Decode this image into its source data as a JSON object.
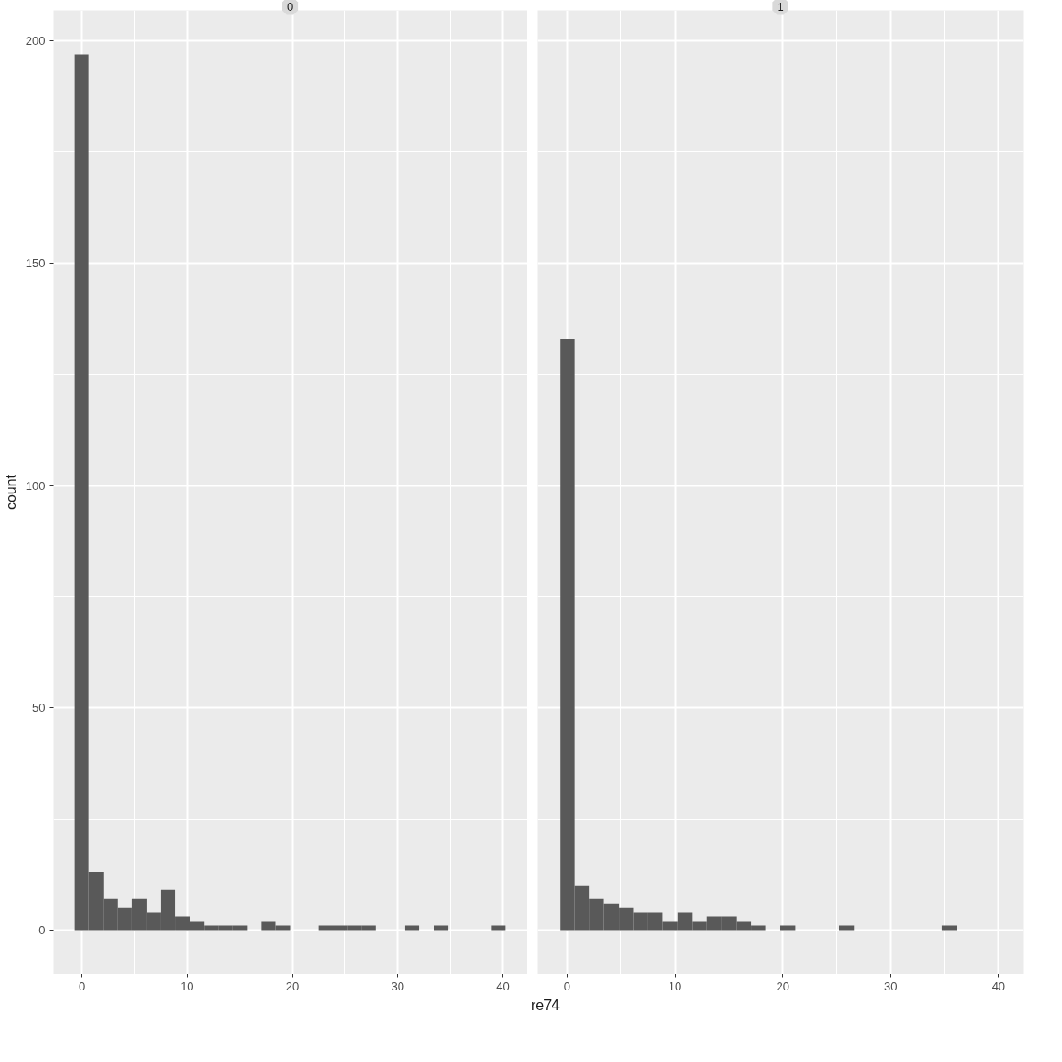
{
  "chart_data": [
    {
      "type": "histogram",
      "title": "0",
      "xlabel": "re74",
      "ylabel": "count",
      "color": "#595959",
      "bins": [
        -0.68,
        0.68,
        2.05,
        3.41,
        4.78,
        6.14,
        7.5,
        8.87,
        10.23,
        11.6,
        12.96,
        14.32,
        15.69,
        17.05,
        18.42,
        19.78,
        21.14,
        22.51,
        23.87,
        25.24,
        26.6,
        27.96,
        29.33,
        30.69,
        32.06,
        33.42,
        34.78,
        36.15,
        37.51,
        38.88,
        40.24
      ],
      "values": [
        197,
        13,
        7,
        5,
        7,
        4,
        9,
        3,
        2,
        1,
        1,
        1,
        0,
        2,
        1,
        0,
        0,
        1,
        1,
        1,
        1,
        0,
        0,
        1,
        0,
        1,
        0,
        0,
        0,
        1
      ],
      "xlim": [
        -2.73,
        42.29
      ],
      "ylim": [
        -9.85,
        206.85
      ],
      "xticks": [
        0,
        10,
        20,
        30,
        40
      ],
      "yticks": [
        0,
        50,
        100,
        150,
        200
      ],
      "grid": true
    },
    {
      "type": "histogram",
      "title": "1",
      "color": "#595959",
      "bins": [
        -0.68,
        0.68,
        2.05,
        3.41,
        4.78,
        6.14,
        7.5,
        8.87,
        10.23,
        11.6,
        12.96,
        14.32,
        15.69,
        17.05,
        18.42,
        19.78,
        21.14,
        22.51,
        23.87,
        25.24,
        26.6,
        27.96,
        29.33,
        30.69,
        32.06,
        33.42,
        34.78,
        36.15,
        37.51,
        38.88,
        40.24
      ],
      "values": [
        133,
        10,
        7,
        6,
        5,
        4,
        4,
        2,
        4,
        2,
        3,
        3,
        2,
        1,
        0,
        1,
        0,
        0,
        0,
        1,
        0,
        0,
        0,
        0,
        0,
        0,
        1,
        0,
        0,
        0
      ],
      "xlim": [
        -2.73,
        42.29
      ],
      "ylim": [
        -9.85,
        206.85
      ],
      "xticks": [
        0,
        10,
        20,
        30,
        40
      ],
      "yticks": [
        0,
        50,
        100,
        150,
        200
      ],
      "grid": true,
      "tick_labels": "x"
    }
  ]
}
